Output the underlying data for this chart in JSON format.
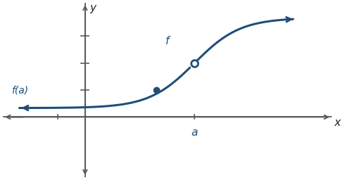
{
  "curve_color": "#1F4E79",
  "bg_color": "#ffffff",
  "axis_color": "#595959",
  "a_x": 2.0,
  "hole_y": 1.8,
  "fa_y": 0.9,
  "fa_x": 1.3,
  "xlim": [
    -1.5,
    4.5
  ],
  "ylim": [
    -2.0,
    3.8
  ],
  "origin_x": 0.0,
  "origin_y": 0.0,
  "label_f": "f",
  "label_fa": "f(a)",
  "label_a": "a",
  "label_x": "x",
  "label_y": "y",
  "figsize": [
    4.87,
    2.56
  ],
  "dpi": 100
}
